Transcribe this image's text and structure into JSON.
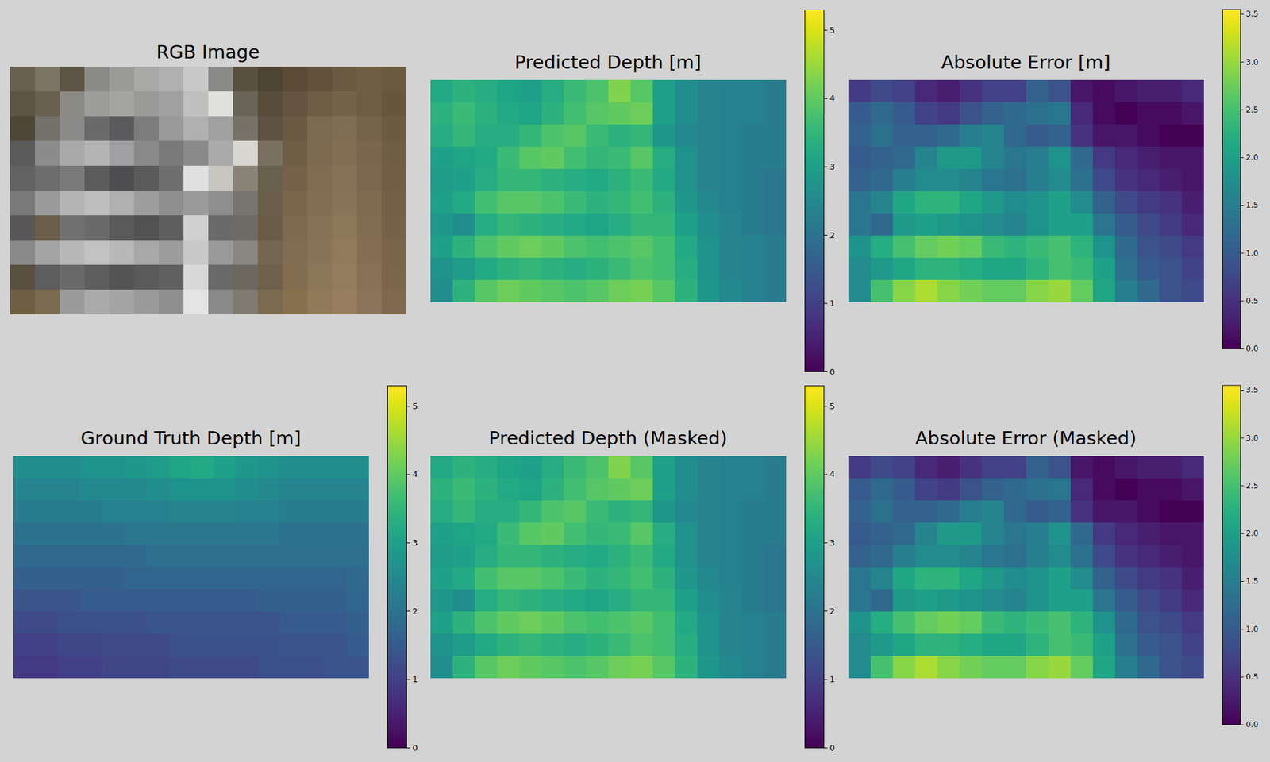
{
  "chart_data": [
    {
      "type": "image",
      "title": "RGB Image",
      "tick_labels": false,
      "pixels": [
        [
          "#6a6050",
          "#7a7464",
          "#5c5444",
          "#8a8a86",
          "#9a9a98",
          "#a8a8a6",
          "#b0b0b0",
          "#c8c8c8",
          "#8a8a88",
          "#5a5040",
          "#4e4434",
          "#5a4a36",
          "#62523c",
          "#6a5a42",
          "#705e44",
          "#6a5a40"
        ],
        [
          "#5e5444",
          "#6a6050",
          "#8c8a84",
          "#9c9c9a",
          "#a4a4a2",
          "#9a9a98",
          "#a0a0a0",
          "#c0c0c0",
          "#e0e0dc",
          "#6a6458",
          "#584c3a",
          "#645440",
          "#6e5c44",
          "#74624a",
          "#6e5c44",
          "#66563e"
        ],
        [
          "#4e4636",
          "#74706a",
          "#8a8a88",
          "#6a6a6a",
          "#5a5a5c",
          "#7c7c7c",
          "#9a9a9a",
          "#b0b0b0",
          "#a0a0a0",
          "#767268",
          "#5e5240",
          "#6a5a44",
          "#7a6a50",
          "#806e54",
          "#76644a",
          "#6c5a42"
        ],
        [
          "#5a5a5a",
          "#8c8c8c",
          "#a8a8a8",
          "#b4b4b4",
          "#a0a0a2",
          "#8a8a8a",
          "#7a7a7a",
          "#8a8a8a",
          "#aaaaaa",
          "#d8d6d0",
          "#7a7060",
          "#6e5e46",
          "#7c6a50",
          "#846e54",
          "#7a664c",
          "#705e44"
        ],
        [
          "#626262",
          "#6c6c6c",
          "#7a7a7a",
          "#5c5c5c",
          "#4e4e50",
          "#5a5a5a",
          "#6e6e6e",
          "#e0e0e0",
          "#c8c6c0",
          "#8a8478",
          "#6a604e",
          "#766248",
          "#806c50",
          "#887256",
          "#7c684e",
          "#725e44"
        ],
        [
          "#7a7a7a",
          "#9a9a9a",
          "#b4b4b4",
          "#bebebe",
          "#b0b0b0",
          "#9e9e9e",
          "#8e8e8e",
          "#9a9a9a",
          "#8e8e8e",
          "#787470",
          "#6a5e4a",
          "#7a6648",
          "#846e52",
          "#8a7458",
          "#806a50",
          "#746046"
        ],
        [
          "#585858",
          "#6a5e4a",
          "#707070",
          "#6a6a6a",
          "#5a5a5a",
          "#525252",
          "#5e5e5e",
          "#d0d0d0",
          "#6a6a6a",
          "#6e6a64",
          "#6a5c46",
          "#7e6a4e",
          "#887256",
          "#8e785a",
          "#826c52",
          "#766248"
        ],
        [
          "#8a8a8a",
          "#a4a4a4",
          "#b8b8b8",
          "#c2c2c2",
          "#b8b8b8",
          "#a8a8a8",
          "#9c9c9c",
          "#c8c8c8",
          "#9a9a9a",
          "#8a8680",
          "#746650",
          "#806c50",
          "#8a7458",
          "#927a5c",
          "#866e54",
          "#7a644a"
        ],
        [
          "#5a5040",
          "#5e5e5e",
          "#6a6a6a",
          "#5e5e5e",
          "#545454",
          "#5a5a5a",
          "#606060",
          "#d8d8d8",
          "#6a6a6a",
          "#6c6860",
          "#6e604a",
          "#826c50",
          "#8c7658",
          "#947c5e",
          "#887056",
          "#7c664a"
        ],
        [
          "#6e5e44",
          "#7a6a50",
          "#9a9a9a",
          "#aaaaaa",
          "#a4a4a4",
          "#9a9a9a",
          "#8e8e8e",
          "#e4e4e4",
          "#8a8a8a",
          "#807a70",
          "#7a6a50",
          "#86704e",
          "#907a5a",
          "#987e60",
          "#8c7458",
          "#80684c"
        ]
      ]
    },
    {
      "type": "heatmap",
      "title": "Predicted Depth [m]",
      "tick_labels": false,
      "color": "viridis",
      "zlim": [
        0,
        5.3
      ],
      "zticks": [
        0,
        1,
        2,
        3,
        4,
        5
      ],
      "cells": [
        [
          3.2,
          3.4,
          3.3,
          3.1,
          3.0,
          3.3,
          3.6,
          3.8,
          4.3,
          3.9,
          3.0,
          2.6,
          2.4,
          2.3,
          2.3,
          2.2
        ],
        [
          3.4,
          3.6,
          3.4,
          3.2,
          3.1,
          3.4,
          3.7,
          3.9,
          4.0,
          4.1,
          3.0,
          2.6,
          2.4,
          2.3,
          2.3,
          2.2
        ],
        [
          3.3,
          3.5,
          3.3,
          3.3,
          3.5,
          3.8,
          3.9,
          3.6,
          3.4,
          3.5,
          2.8,
          2.5,
          2.4,
          2.3,
          2.2,
          2.2
        ],
        [
          3.0,
          3.1,
          3.2,
          3.6,
          3.9,
          4.0,
          3.7,
          3.5,
          3.6,
          3.9,
          3.3,
          2.7,
          2.4,
          2.3,
          2.2,
          2.2
        ],
        [
          2.9,
          3.0,
          3.3,
          3.5,
          3.5,
          3.4,
          3.3,
          3.2,
          3.4,
          3.6,
          3.2,
          2.7,
          2.4,
          2.3,
          2.2,
          2.1
        ],
        [
          3.0,
          3.2,
          3.7,
          3.9,
          3.9,
          3.8,
          3.6,
          3.4,
          3.5,
          3.7,
          3.4,
          2.8,
          2.5,
          2.3,
          2.2,
          2.1
        ],
        [
          2.8,
          2.6,
          3.3,
          3.5,
          3.4,
          3.3,
          3.2,
          3.1,
          3.3,
          3.5,
          3.5,
          3.0,
          2.6,
          2.4,
          2.2,
          2.1
        ],
        [
          3.0,
          3.4,
          3.8,
          4.0,
          4.1,
          4.0,
          3.8,
          3.7,
          3.8,
          3.9,
          3.7,
          3.2,
          2.7,
          2.4,
          2.3,
          2.2
        ],
        [
          2.7,
          2.9,
          3.2,
          3.4,
          3.5,
          3.4,
          3.3,
          3.4,
          3.6,
          3.8,
          3.7,
          3.3,
          2.7,
          2.4,
          2.3,
          2.2
        ],
        [
          2.6,
          3.4,
          3.9,
          4.1,
          4.0,
          3.9,
          3.8,
          3.9,
          4.1,
          4.2,
          3.9,
          3.4,
          2.8,
          2.5,
          2.3,
          2.2
        ]
      ]
    },
    {
      "type": "heatmap",
      "title": "Absolute Error [m]",
      "tick_labels": false,
      "color": "viridis",
      "zlim": [
        0,
        3.55
      ],
      "zticks": [
        {
          "value": 0,
          "label": "0.0"
        },
        {
          "value": 0.5,
          "label": "0.5"
        },
        {
          "value": 1,
          "label": "1.0"
        },
        {
          "value": 1.5,
          "label": "1.5"
        },
        {
          "value": 2,
          "label": "2.0"
        },
        {
          "value": 2.5,
          "label": "2.5"
        },
        {
          "value": 3,
          "label": "3.0"
        },
        {
          "value": 3.5,
          "label": "3.5"
        }
      ],
      "cells": [
        [
          0.6,
          0.8,
          0.7,
          0.4,
          0.3,
          0.5,
          0.7,
          0.7,
          1.1,
          0.9,
          0.2,
          0.1,
          0.2,
          0.3,
          0.3,
          0.4
        ],
        [
          1.0,
          1.2,
          1.0,
          0.7,
          0.6,
          0.9,
          1.1,
          1.2,
          1.3,
          1.4,
          0.4,
          0.1,
          0.0,
          0.1,
          0.1,
          0.2
        ],
        [
          1.1,
          1.3,
          1.1,
          1.1,
          1.2,
          1.5,
          1.6,
          1.2,
          1.0,
          1.1,
          0.5,
          0.2,
          0.2,
          0.1,
          0.0,
          0.0
        ],
        [
          1.0,
          1.1,
          1.2,
          1.6,
          1.9,
          1.9,
          1.6,
          1.4,
          1.5,
          1.8,
          1.2,
          0.6,
          0.4,
          0.3,
          0.2,
          0.2
        ],
        [
          1.1,
          1.2,
          1.5,
          1.7,
          1.7,
          1.6,
          1.4,
          1.3,
          1.5,
          1.7,
          1.3,
          0.8,
          0.5,
          0.4,
          0.3,
          0.2
        ],
        [
          1.4,
          1.6,
          2.1,
          2.3,
          2.3,
          2.1,
          1.9,
          1.7,
          1.8,
          2.0,
          1.7,
          1.1,
          0.8,
          0.6,
          0.5,
          0.3
        ],
        [
          1.4,
          1.2,
          1.9,
          2.0,
          1.9,
          1.8,
          1.7,
          1.6,
          1.8,
          2.0,
          2.0,
          1.4,
          1.0,
          0.8,
          0.6,
          0.4
        ],
        [
          1.8,
          2.2,
          2.5,
          2.7,
          2.8,
          2.7,
          2.4,
          2.3,
          2.4,
          2.5,
          2.3,
          1.8,
          1.2,
          0.9,
          0.8,
          0.6
        ],
        [
          1.7,
          1.9,
          2.1,
          2.3,
          2.3,
          2.2,
          2.1,
          2.1,
          2.3,
          2.5,
          2.4,
          2.0,
          1.3,
          1.0,
          0.9,
          0.7
        ],
        [
          1.7,
          2.5,
          2.9,
          3.1,
          2.9,
          2.8,
          2.7,
          2.7,
          2.9,
          3.0,
          2.7,
          2.1,
          1.5,
          1.2,
          0.9,
          0.8
        ]
      ]
    },
    {
      "type": "heatmap",
      "title": "Ground Truth Depth [m]",
      "tick_labels": false,
      "color": "viridis",
      "zlim": [
        0,
        5.3
      ],
      "zticks": [
        0,
        1,
        2,
        3,
        4,
        5
      ],
      "cells": [
        [
          2.6,
          2.6,
          2.6,
          2.7,
          2.7,
          2.8,
          2.9,
          3.1,
          3.2,
          3.0,
          2.8,
          2.7,
          2.6,
          2.6,
          2.6,
          2.6
        ],
        [
          2.4,
          2.4,
          2.4,
          2.5,
          2.5,
          2.5,
          2.6,
          2.7,
          2.7,
          2.7,
          2.6,
          2.5,
          2.4,
          2.4,
          2.4,
          2.4
        ],
        [
          2.2,
          2.2,
          2.2,
          2.2,
          2.3,
          2.3,
          2.3,
          2.4,
          2.4,
          2.4,
          2.3,
          2.3,
          2.2,
          2.2,
          2.2,
          2.2
        ],
        [
          2.0,
          2.0,
          2.0,
          2.0,
          2.0,
          2.1,
          2.1,
          2.1,
          2.1,
          2.1,
          2.1,
          2.1,
          2.0,
          2.0,
          2.0,
          2.0
        ],
        [
          1.8,
          1.8,
          1.8,
          1.8,
          1.8,
          1.8,
          1.9,
          1.9,
          1.9,
          1.9,
          1.9,
          1.9,
          1.9,
          1.9,
          1.9,
          1.9
        ],
        [
          1.6,
          1.6,
          1.6,
          1.6,
          1.6,
          1.7,
          1.7,
          1.7,
          1.7,
          1.7,
          1.7,
          1.7,
          1.7,
          1.7,
          1.7,
          1.8
        ],
        [
          1.4,
          1.4,
          1.4,
          1.5,
          1.5,
          1.5,
          1.5,
          1.5,
          1.5,
          1.5,
          1.5,
          1.6,
          1.6,
          1.6,
          1.6,
          1.7
        ],
        [
          1.2,
          1.2,
          1.3,
          1.3,
          1.3,
          1.3,
          1.4,
          1.4,
          1.4,
          1.4,
          1.4,
          1.4,
          1.5,
          1.5,
          1.5,
          1.6
        ],
        [
          1.0,
          1.0,
          1.1,
          1.1,
          1.2,
          1.2,
          1.2,
          1.3,
          1.3,
          1.3,
          1.3,
          1.3,
          1.4,
          1.4,
          1.4,
          1.5
        ],
        [
          0.9,
          0.9,
          1.0,
          1.0,
          1.1,
          1.1,
          1.1,
          1.2,
          1.2,
          1.2,
          1.2,
          1.3,
          1.3,
          1.3,
          1.4,
          1.4
        ]
      ]
    },
    {
      "type": "heatmap",
      "title": "Predicted Depth (Masked)",
      "tick_labels": false,
      "color": "viridis",
      "zlim": [
        0,
        5.3
      ],
      "zticks": [
        0,
        1,
        2,
        3,
        4,
        5
      ],
      "cells": [
        [
          3.2,
          3.4,
          3.3,
          3.1,
          3.0,
          3.3,
          3.6,
          3.8,
          4.3,
          3.9,
          3.0,
          2.6,
          2.4,
          2.3,
          2.3,
          2.2
        ],
        [
          3.4,
          3.6,
          3.4,
          3.2,
          3.1,
          3.4,
          3.7,
          3.9,
          4.0,
          4.1,
          3.0,
          2.6,
          2.4,
          2.3,
          2.3,
          2.2
        ],
        [
          3.3,
          3.5,
          3.3,
          3.3,
          3.5,
          3.8,
          3.9,
          3.6,
          3.4,
          3.5,
          2.8,
          2.5,
          2.4,
          2.3,
          2.2,
          2.2
        ],
        [
          3.0,
          3.1,
          3.2,
          3.6,
          3.9,
          4.0,
          3.7,
          3.5,
          3.6,
          3.9,
          3.3,
          2.7,
          2.4,
          2.3,
          2.2,
          2.2
        ],
        [
          2.9,
          3.0,
          3.3,
          3.5,
          3.5,
          3.4,
          3.3,
          3.2,
          3.4,
          3.6,
          3.2,
          2.7,
          2.4,
          2.3,
          2.2,
          2.1
        ],
        [
          3.0,
          3.2,
          3.7,
          3.9,
          3.9,
          3.8,
          3.6,
          3.4,
          3.5,
          3.7,
          3.4,
          2.8,
          2.5,
          2.3,
          2.2,
          2.1
        ],
        [
          2.8,
          2.6,
          3.3,
          3.5,
          3.4,
          3.3,
          3.2,
          3.1,
          3.3,
          3.5,
          3.5,
          3.0,
          2.6,
          2.4,
          2.2,
          2.1
        ],
        [
          3.0,
          3.4,
          3.8,
          4.0,
          4.1,
          4.0,
          3.8,
          3.7,
          3.8,
          3.9,
          3.7,
          3.2,
          2.7,
          2.4,
          2.3,
          2.2
        ],
        [
          2.7,
          2.9,
          3.2,
          3.4,
          3.5,
          3.4,
          3.3,
          3.4,
          3.6,
          3.8,
          3.7,
          3.3,
          2.7,
          2.4,
          2.3,
          2.2
        ],
        [
          2.6,
          3.4,
          3.9,
          4.1,
          4.0,
          3.9,
          3.8,
          3.9,
          4.1,
          4.2,
          3.9,
          3.4,
          2.8,
          2.5,
          2.3,
          2.2
        ]
      ]
    },
    {
      "type": "heatmap",
      "title": "Absolute Error (Masked)",
      "tick_labels": false,
      "color": "viridis",
      "zlim": [
        0,
        3.55
      ],
      "zticks": [
        {
          "value": 0,
          "label": "0.0"
        },
        {
          "value": 0.5,
          "label": "0.5"
        },
        {
          "value": 1,
          "label": "1.0"
        },
        {
          "value": 1.5,
          "label": "1.5"
        },
        {
          "value": 2,
          "label": "2.0"
        },
        {
          "value": 2.5,
          "label": "2.5"
        },
        {
          "value": 3,
          "label": "3.0"
        },
        {
          "value": 3.5,
          "label": "3.5"
        }
      ],
      "cells": [
        [
          0.6,
          0.8,
          0.7,
          0.4,
          0.3,
          0.5,
          0.7,
          0.7,
          1.1,
          0.9,
          0.2,
          0.1,
          0.2,
          0.3,
          0.3,
          0.4
        ],
        [
          1.0,
          1.2,
          1.0,
          0.7,
          0.6,
          0.9,
          1.1,
          1.2,
          1.3,
          1.4,
          0.4,
          0.1,
          0.0,
          0.1,
          0.1,
          0.2
        ],
        [
          1.1,
          1.3,
          1.1,
          1.1,
          1.2,
          1.5,
          1.6,
          1.2,
          1.0,
          1.1,
          0.5,
          0.2,
          0.2,
          0.1,
          0.0,
          0.0
        ],
        [
          1.0,
          1.1,
          1.2,
          1.6,
          1.9,
          1.9,
          1.6,
          1.4,
          1.5,
          1.8,
          1.2,
          0.6,
          0.4,
          0.3,
          0.2,
          0.2
        ],
        [
          1.1,
          1.2,
          1.5,
          1.7,
          1.7,
          1.6,
          1.4,
          1.3,
          1.5,
          1.7,
          1.3,
          0.8,
          0.5,
          0.4,
          0.3,
          0.2
        ],
        [
          1.4,
          1.6,
          2.1,
          2.3,
          2.3,
          2.1,
          1.9,
          1.7,
          1.8,
          2.0,
          1.7,
          1.1,
          0.8,
          0.6,
          0.5,
          0.3
        ],
        [
          1.4,
          1.2,
          1.9,
          2.0,
          1.9,
          1.8,
          1.7,
          1.6,
          1.8,
          2.0,
          2.0,
          1.4,
          1.0,
          0.8,
          0.6,
          0.4
        ],
        [
          1.8,
          2.2,
          2.5,
          2.7,
          2.8,
          2.7,
          2.4,
          2.3,
          2.4,
          2.5,
          2.3,
          1.8,
          1.2,
          0.9,
          0.8,
          0.6
        ],
        [
          1.7,
          1.9,
          2.1,
          2.3,
          2.3,
          2.2,
          2.1,
          2.1,
          2.3,
          2.5,
          2.4,
          2.0,
          1.3,
          1.0,
          0.9,
          0.7
        ],
        [
          1.7,
          2.5,
          2.9,
          3.1,
          2.9,
          2.8,
          2.7,
          2.7,
          2.9,
          3.0,
          2.7,
          2.1,
          1.5,
          1.2,
          0.9,
          0.8
        ]
      ]
    }
  ]
}
